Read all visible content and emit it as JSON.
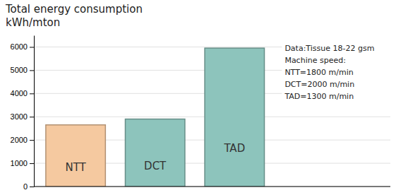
{
  "chart_data": {
    "type": "bar",
    "title": "Total energy consumption",
    "subtitle": "kWh/mton",
    "categories": [
      "NTT",
      "DCT",
      "TAD"
    ],
    "values": [
      2650,
      2900,
      5950
    ],
    "colors": [
      "#f5c9a0",
      "#8dc4bc",
      "#8dc4bc"
    ],
    "ylim": [
      0,
      6500
    ],
    "yticks": [
      0,
      1000,
      2000,
      3000,
      4000,
      5000,
      6000
    ],
    "grid": true,
    "tick_labels": "y",
    "annotations": [
      "Data:Tissue 18-22 gsm",
      "Machine speed:",
      "NTT=1800 m/min",
      "DCT=2000 m/min",
      "TAD=1300 m/min"
    ]
  }
}
